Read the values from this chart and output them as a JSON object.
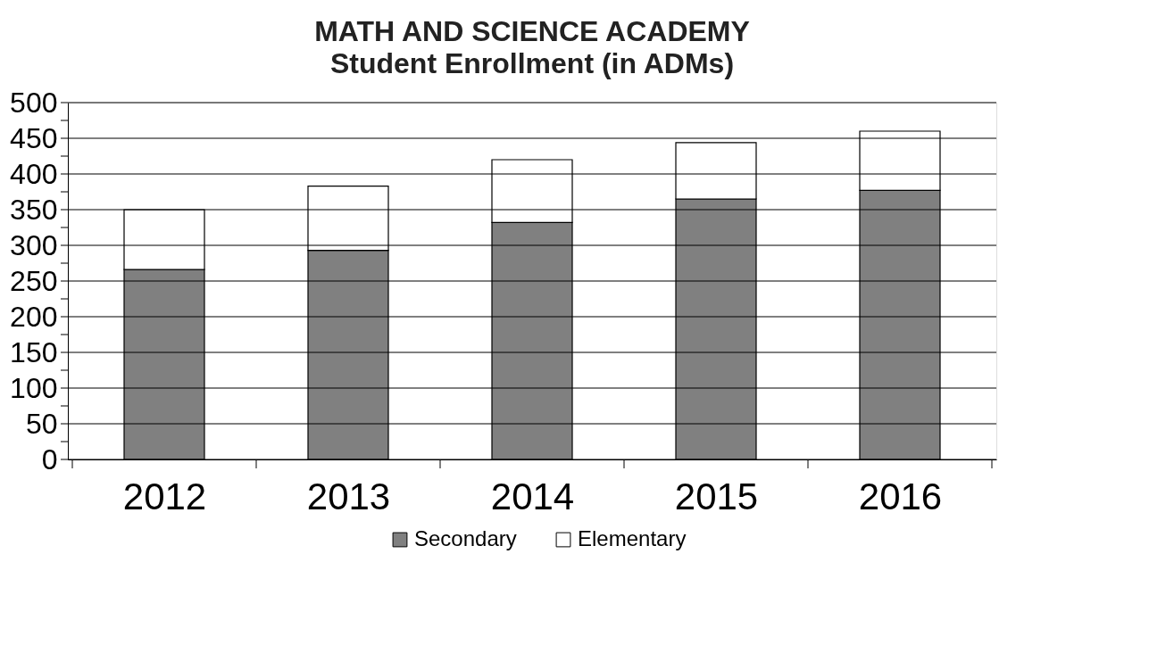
{
  "chart_data": {
    "type": "bar",
    "title": "MATH AND SCIENCE ACADEMY",
    "subtitle": "Student Enrollment (in ADMs)",
    "categories": [
      "2012",
      "2013",
      "2014",
      "2015",
      "2016"
    ],
    "series": [
      {
        "name": "Secondary",
        "color": "#808080",
        "values": [
          266,
          293,
          332,
          365,
          377
        ]
      },
      {
        "name": "Elementary",
        "color": "#ffffff",
        "values": [
          84,
          90,
          88,
          79,
          83
        ]
      }
    ],
    "stacked": true,
    "ylim": [
      0,
      500
    ],
    "yticks": [
      0,
      {
        "value": 25,
        "label": null
      },
      50,
      {
        "value": 75,
        "label": null
      },
      100,
      {
        "value": 125,
        "label": null
      },
      150,
      {
        "value": 175,
        "label": null
      },
      200,
      {
        "value": 225,
        "label": null
      },
      250,
      {
        "value": 275,
        "label": null
      },
      300,
      {
        "value": 325,
        "label": null
      },
      350,
      {
        "value": 375,
        "label": null
      },
      400,
      {
        "value": 425,
        "label": null
      },
      450,
      {
        "value": 475,
        "label": null
      },
      500
    ],
    "grid": "y",
    "legend": "bottom"
  }
}
